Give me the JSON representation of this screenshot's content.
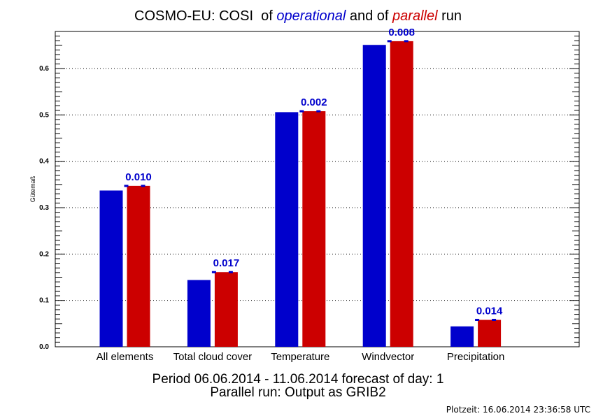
{
  "title": {
    "prefix": "COSMO-EU: COSI  of ",
    "operational_word": "operational",
    "middle": " and of ",
    "parallel_word": "parallel",
    "suffix": " run"
  },
  "footer": {
    "period_line": "Period 06.06.2014 - 11.06.2014 forecast of day: 1",
    "parallel_line": "Parallel run: Output as GRIB2",
    "plotzeit": "Plotzeit: 16.06.2014 23:36:58 UTC"
  },
  "colors": {
    "operational": "#0000cc",
    "parallel": "#cc0000",
    "difference_label": "#0000cc",
    "grid": "#000000"
  },
  "chart_data": {
    "type": "bar",
    "title": "COSMO-EU: COSI  of operational and of parallel run",
    "ylabel": "Gütemaß",
    "xlabel": "",
    "ylim": [
      0,
      0.68
    ],
    "yticks": [
      "0.0",
      "0.1",
      "0.2",
      "0.3",
      "0.4",
      "0.5",
      "0.6"
    ],
    "grid": "horizontal dotted",
    "categories": [
      "All elements",
      "Total cloud cover",
      "Temperature",
      "Windvector",
      "Precipitation"
    ],
    "series": [
      {
        "key": "operational",
        "values": [
          0.337,
          0.144,
          0.506,
          0.651,
          0.044
        ]
      },
      {
        "key": "parallel",
        "values": [
          0.347,
          0.161,
          0.508,
          0.659,
          0.058
        ]
      }
    ],
    "difference_labels": [
      "0.010",
      "0.017",
      "0.002",
      "0.008",
      "0.014"
    ]
  }
}
